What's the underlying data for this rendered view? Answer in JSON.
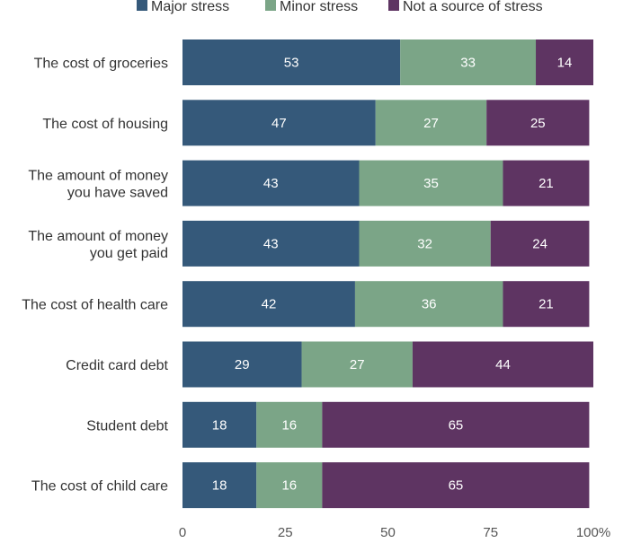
{
  "chart_data": {
    "type": "bar",
    "orientation": "horizontal",
    "stacked": true,
    "title": "",
    "xlabel": "",
    "ylabel": "",
    "xlim": [
      0,
      100
    ],
    "x_ticks": [
      "0",
      "25",
      "50",
      "75",
      "100%"
    ],
    "legend": {
      "position": "top"
    },
    "grid": false,
    "categories": [
      "The cost of groceries",
      "The cost of housing",
      "The amount of money you have saved",
      "The amount of money you get paid",
      "The cost of health care",
      "Credit card debt",
      "Student debt",
      "The cost of child care"
    ],
    "category_lines": [
      [
        "The cost of groceries"
      ],
      [
        "The cost of housing"
      ],
      [
        "The amount of money",
        "you have saved"
      ],
      [
        "The amount of money",
        "you get paid"
      ],
      [
        "The cost of health care"
      ],
      [
        "Credit card debt"
      ],
      [
        "Student debt"
      ],
      [
        "The cost of child care"
      ]
    ],
    "series": [
      {
        "name": "Major stress",
        "color": "#35597a",
        "values": [
          53,
          47,
          43,
          43,
          42,
          29,
          18,
          18
        ]
      },
      {
        "name": "Minor stress",
        "color": "#7ba587",
        "values": [
          33,
          27,
          35,
          32,
          36,
          27,
          16,
          16
        ]
      },
      {
        "name": "Not a source of stress",
        "color": "#5e3462",
        "values": [
          14,
          25,
          21,
          24,
          21,
          44,
          65,
          65
        ]
      }
    ]
  }
}
